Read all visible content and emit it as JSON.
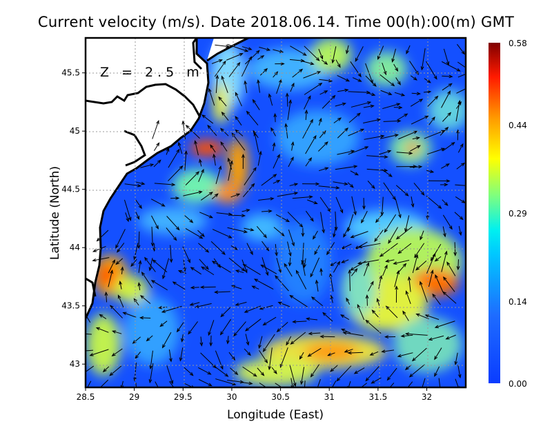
{
  "title": "Current velocity (m/s). Date 2018.06.14. Time 00(h):00(m) GMT",
  "depth_label": "Z = 2.5 m",
  "chart_data": {
    "type": "heatmap",
    "subtype": "vector-field map",
    "title": "Current velocity (m/s). Date 2018.06.14. Time 00(h):00(m) GMT",
    "xlabel": "Longitude (East)",
    "ylabel": "Latitude (North)",
    "xlim": [
      28.5,
      32.4
    ],
    "ylim": [
      42.8,
      45.8
    ],
    "xticks": [
      "28.5",
      "29",
      "29.5",
      "30",
      "30.5",
      "31",
      "31.5",
      "32"
    ],
    "yticks": [
      "45.5",
      "45",
      "44.5",
      "44",
      "43.5",
      "43"
    ],
    "grid": true,
    "colorbar": {
      "label_ticks": [
        "0.58",
        "0.44",
        "0.29",
        "0.14",
        "0.00"
      ],
      "range": [
        0.0,
        0.58
      ],
      "colors": [
        "#0a3cff",
        "#1e78ff",
        "#00e0ff",
        "#7dff80",
        "#ffff00",
        "#ff9900",
        "#ff1a00",
        "#800000"
      ]
    },
    "annotation": "Z = 2.5 m"
  }
}
